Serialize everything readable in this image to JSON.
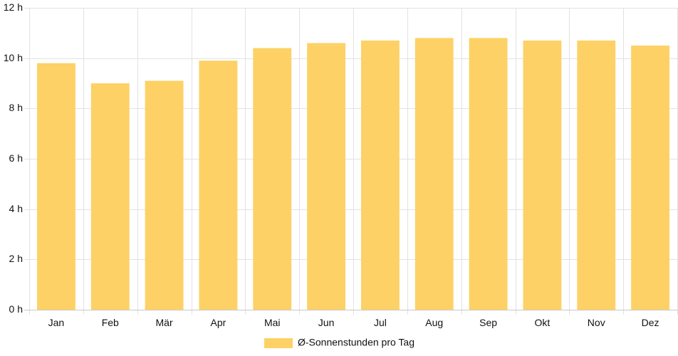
{
  "chart_data": {
    "type": "bar",
    "categories": [
      "Jan",
      "Feb",
      "Mär",
      "Apr",
      "Mai",
      "Jun",
      "Jul",
      "Aug",
      "Sep",
      "Okt",
      "Nov",
      "Dez"
    ],
    "series": [
      {
        "name": "Ø-Sonnenstunden pro Tag",
        "values": [
          9.8,
          9.0,
          9.1,
          9.9,
          10.4,
          10.6,
          10.7,
          10.8,
          10.8,
          10.7,
          10.7,
          10.5
        ],
        "color": "#fdd166"
      }
    ],
    "y_ticks": [
      "0 h",
      "2 h",
      "4 h",
      "6 h",
      "8 h",
      "10 h",
      "12 h"
    ],
    "ylim": [
      0,
      12
    ],
    "grid": true,
    "legend_position": "bottom"
  }
}
